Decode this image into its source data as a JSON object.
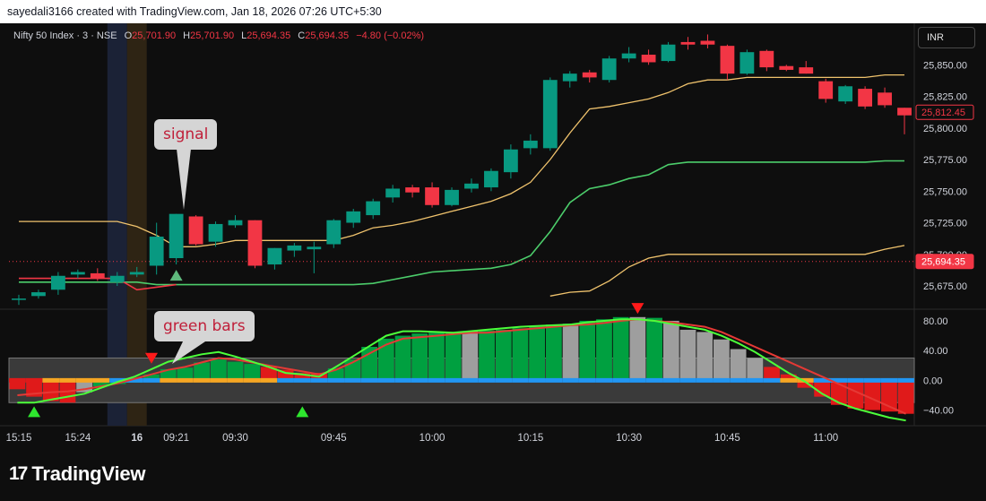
{
  "header": {
    "credit": "sayedali3166 created with TradingView.com, Jan 18, 2026 07:26 UTC+5:30",
    "symbol": "Nifty 50 Index · 3 · NSE",
    "o_label": "O",
    "o": "25,701.90",
    "h_label": "H",
    "h": "25,701.90",
    "l_label": "L",
    "l": "25,694.35",
    "c_label": "C",
    "c": "25,694.35",
    "change": "−4.80 (−0.02%)"
  },
  "currency_button": "INR",
  "annotations": {
    "signal": "signal",
    "green_bars": "green bars"
  },
  "logo": {
    "mark": "17",
    "text": "TradingView"
  },
  "colors": {
    "up": "#089981",
    "down": "#f23645",
    "histo_up": "#00a040",
    "histo_down": "#e01a1a",
    "neutral": "#9e9e9e",
    "upper_band": "#f0c36d",
    "green_line": "#4ccd6b",
    "red_line": "#f23645"
  },
  "chart_data": [
    {
      "type": "candlestick",
      "yticks": [
        25675,
        25700,
        25725,
        25750,
        25775,
        25800,
        25825,
        25850
      ],
      "ylim": [
        25658,
        25880
      ],
      "price_labels": {
        "last": "25,694.35",
        "other": "25,812.45"
      },
      "xticks": [
        {
          "i": 0,
          "label": "15:15"
        },
        {
          "i": 3,
          "label": "15:24"
        },
        {
          "i": 6,
          "label": "16"
        },
        {
          "i": 8,
          "label": "09:21"
        },
        {
          "i": 11,
          "label": "09:30"
        },
        {
          "i": 16,
          "label": "09:45"
        },
        {
          "i": 21,
          "label": "10:00"
        },
        {
          "i": 26,
          "label": "10:15"
        },
        {
          "i": 31,
          "label": "10:30"
        },
        {
          "i": 36,
          "label": "10:45"
        },
        {
          "i": 41,
          "label": "11:00"
        }
      ],
      "candles": [
        {
          "o": 25665,
          "h": 25668,
          "l": 25660,
          "c": 25665
        },
        {
          "o": 25667,
          "h": 25672,
          "l": 25665,
          "c": 25670
        },
        {
          "o": 25672,
          "h": 25686,
          "l": 25668,
          "c": 25683
        },
        {
          "o": 25684,
          "h": 25688,
          "l": 25681,
          "c": 25686
        },
        {
          "o": 25685,
          "h": 25689,
          "l": 25679,
          "c": 25681
        },
        {
          "o": 25678,
          "h": 25686,
          "l": 25675,
          "c": 25683
        },
        {
          "o": 25684,
          "h": 25690,
          "l": 25682,
          "c": 25686
        },
        {
          "o": 25691,
          "h": 25725,
          "l": 25684,
          "c": 25714
        },
        {
          "o": 25697,
          "h": 25732,
          "l": 25692,
          "c": 25732
        },
        {
          "o": 25730,
          "h": 25731,
          "l": 25707,
          "c": 25708
        },
        {
          "o": 25710,
          "h": 25726,
          "l": 25706,
          "c": 25724
        },
        {
          "o": 25723,
          "h": 25731,
          "l": 25721,
          "c": 25727
        },
        {
          "o": 25727,
          "h": 25727,
          "l": 25689,
          "c": 25691
        },
        {
          "o": 25692,
          "h": 25705,
          "l": 25688,
          "c": 25705
        },
        {
          "o": 25703,
          "h": 25709,
          "l": 25698,
          "c": 25707
        },
        {
          "o": 25704,
          "h": 25710,
          "l": 25685,
          "c": 25706
        },
        {
          "o": 25708,
          "h": 25728,
          "l": 25705,
          "c": 25727
        },
        {
          "o": 25725,
          "h": 25736,
          "l": 25721,
          "c": 25734
        },
        {
          "o": 25731,
          "h": 25744,
          "l": 25728,
          "c": 25742
        },
        {
          "o": 25745,
          "h": 25755,
          "l": 25741,
          "c": 25752
        },
        {
          "o": 25753,
          "h": 25755,
          "l": 25745,
          "c": 25749
        },
        {
          "o": 25753,
          "h": 25757,
          "l": 25737,
          "c": 25739
        },
        {
          "o": 25739,
          "h": 25753,
          "l": 25738,
          "c": 25751
        },
        {
          "o": 25752,
          "h": 25760,
          "l": 25749,
          "c": 25756
        },
        {
          "o": 25753,
          "h": 25768,
          "l": 25750,
          "c": 25766
        },
        {
          "o": 25765,
          "h": 25787,
          "l": 25760,
          "c": 25783
        },
        {
          "o": 25784,
          "h": 25795,
          "l": 25779,
          "c": 25790
        },
        {
          "o": 25784,
          "h": 25840,
          "l": 25782,
          "c": 25838
        },
        {
          "o": 25837,
          "h": 25845,
          "l": 25832,
          "c": 25843
        },
        {
          "o": 25844,
          "h": 25846,
          "l": 25836,
          "c": 25840
        },
        {
          "o": 25838,
          "h": 25857,
          "l": 25836,
          "c": 25855
        },
        {
          "o": 25855,
          "h": 25864,
          "l": 25852,
          "c": 25859
        },
        {
          "o": 25858,
          "h": 25862,
          "l": 25850,
          "c": 25852
        },
        {
          "o": 25853,
          "h": 25868,
          "l": 25852,
          "c": 25866
        },
        {
          "o": 25868,
          "h": 25872,
          "l": 25862,
          "c": 25866
        },
        {
          "o": 25869,
          "h": 25874,
          "l": 25863,
          "c": 25866
        },
        {
          "o": 25865,
          "h": 25866,
          "l": 25838,
          "c": 25843
        },
        {
          "o": 25843,
          "h": 25862,
          "l": 25842,
          "c": 25860
        },
        {
          "o": 25861,
          "h": 25862,
          "l": 25845,
          "c": 25848
        },
        {
          "o": 25849,
          "h": 25850,
          "l": 25845,
          "c": 25846
        },
        {
          "o": 25848,
          "h": 25853,
          "l": 25843,
          "c": 25843
        },
        {
          "o": 25837,
          "h": 25839,
          "l": 25820,
          "c": 25823
        },
        {
          "o": 25821,
          "h": 25834,
          "l": 25819,
          "c": 25833
        },
        {
          "o": 25831,
          "h": 25833,
          "l": 25815,
          "c": 25817
        },
        {
          "o": 25828,
          "h": 25832,
          "l": 25816,
          "c": 25818
        },
        {
          "o": 25816,
          "h": 25816,
          "l": 25795,
          "c": 25810
        }
      ],
      "upper_band": [
        25726,
        25726,
        25726,
        25726,
        25726,
        25726,
        25722,
        25715,
        25706,
        25706,
        25708,
        25711,
        25711,
        25711,
        25711,
        25711,
        25711,
        25715,
        25721,
        25723,
        25726,
        25730,
        25734,
        25738,
        25742,
        25748,
        25757,
        25775,
        25796,
        25815,
        25817,
        25820,
        25823,
        25828,
        25835,
        25838,
        25838,
        25840,
        25840,
        25840,
        25840,
        25840,
        25840,
        25840,
        25842,
        25842
      ],
      "green_line": [
        25678,
        25678,
        25678,
        25678,
        25678,
        25678,
        25678,
        25676,
        25676,
        25676,
        25676,
        25676,
        25676,
        25676,
        25676,
        25676,
        25676,
        25676,
        25677,
        25680,
        25683,
        25686,
        25687,
        25688,
        25689,
        25692,
        25699,
        25718,
        25741,
        25752,
        25755,
        25760,
        25763,
        25771,
        25773,
        25773,
        25773,
        25773,
        25773,
        25773,
        25773,
        25773,
        25773,
        25773,
        25774,
        25774
      ],
      "lower_band": [
        null,
        null,
        null,
        null,
        null,
        null,
        null,
        null,
        null,
        null,
        null,
        null,
        null,
        null,
        null,
        null,
        null,
        null,
        null,
        null,
        null,
        null,
        null,
        null,
        null,
        null,
        null,
        25667,
        25670,
        25671,
        25679,
        25690,
        25697,
        25700,
        25700,
        25700,
        25700,
        25700,
        25700,
        25700,
        25700,
        25700,
        25700,
        25700,
        25704,
        25707
      ],
      "red_line": [
        25681,
        25681,
        25681,
        25681,
        25681,
        25681,
        25672,
        25674,
        25676,
        null,
        null,
        null,
        null,
        null,
        null,
        null,
        null,
        null,
        null,
        null,
        null,
        null,
        null,
        null,
        null,
        null,
        null,
        null,
        null,
        null,
        null,
        null,
        null,
        null,
        null,
        null,
        null,
        null,
        null,
        null,
        null,
        null,
        null,
        null,
        null,
        null
      ],
      "signal_marker_index": 9,
      "session_break_index": 7
    },
    {
      "type": "histogram",
      "yticks": [
        80,
        40,
        0,
        -40
      ],
      "ylim": [
        -55,
        92
      ],
      "band": [
        30,
        -30
      ],
      "values": [
        -12,
        -22,
        -28,
        -30,
        -16,
        -8,
        -5,
        -3,
        8,
        15,
        17,
        24,
        28,
        25,
        22,
        18,
        14,
        10,
        10,
        16,
        28,
        45,
        56,
        60,
        63,
        64,
        65,
        66,
        67,
        68,
        70,
        72,
        75,
        76,
        80,
        82,
        85,
        85,
        84,
        80,
        68,
        65,
        55,
        42,
        30,
        18,
        8,
        -10,
        -22,
        -33,
        -38,
        -40,
        -42,
        -45
      ],
      "colors": [
        "down",
        "down",
        "down",
        "down",
        "neutral",
        "up",
        "up",
        "up",
        "up",
        "up",
        "up",
        "up",
        "up",
        "up",
        "up",
        "down",
        "down",
        "down",
        "down",
        "up",
        "up",
        "up",
        "up",
        "up",
        "up",
        "up",
        "up",
        "neutral",
        "up",
        "up",
        "up",
        "up",
        "up",
        "neutral",
        "up",
        "up",
        "up",
        "neutral",
        "up",
        "neutral",
        "neutral",
        "neutral",
        "neutral",
        "neutral",
        "neutral",
        "down",
        "down",
        "down",
        "down",
        "down",
        "down",
        "down",
        "down",
        "down"
      ],
      "fast_line": [
        -30,
        -30,
        -26,
        -22,
        -18,
        -10,
        -2,
        5,
        15,
        25,
        30,
        35,
        38,
        32,
        25,
        18,
        10,
        8,
        5,
        18,
        32,
        46,
        60,
        66,
        66,
        65,
        64,
        66,
        68,
        70,
        72,
        73,
        74,
        75,
        78,
        80,
        82,
        82,
        80,
        76,
        72,
        68,
        60,
        50,
        38,
        24,
        10,
        -2,
        -18,
        -30,
        -38,
        -44,
        -50,
        -54
      ],
      "slow_line": [
        -20,
        -18,
        -16,
        -15,
        -12,
        -8,
        -4,
        2,
        8,
        14,
        18,
        24,
        30,
        28,
        24,
        20,
        16,
        12,
        8,
        14,
        24,
        36,
        48,
        56,
        58,
        60,
        62,
        64,
        64,
        66,
        68,
        70,
        72,
        74,
        75,
        77,
        80,
        82,
        80,
        78,
        75,
        72,
        65,
        55,
        45,
        35,
        25,
        15,
        5,
        -5,
        -15,
        -25,
        -35,
        -45
      ],
      "neutral_line_segments": [
        "down",
        "down",
        "orange",
        "orange",
        "orange",
        "orange",
        "blue",
        "blue",
        "blue",
        "orange",
        "orange",
        "orange",
        "orange",
        "orange",
        "orange",
        "orange",
        "blue",
        "blue",
        "blue",
        "blue",
        "blue",
        "blue",
        "blue",
        "blue",
        "blue",
        "blue",
        "blue",
        "blue",
        "blue",
        "blue",
        "blue",
        "blue",
        "blue",
        "blue",
        "blue",
        "blue",
        "blue",
        "blue",
        "blue",
        "blue",
        "blue",
        "blue",
        "blue",
        "blue",
        "blue",
        "blue",
        "orange",
        "orange",
        "blue",
        "blue",
        "blue",
        "blue",
        "blue",
        "blue"
      ],
      "triangles_up": [
        1,
        17
      ],
      "triangles_down": [
        8,
        37
      ]
    }
  ]
}
